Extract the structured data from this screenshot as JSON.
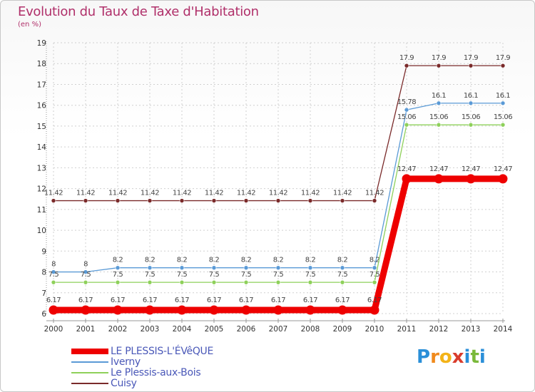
{
  "title": "Evolution du Taux de Taxe d'Habitation",
  "subtitle": "(en %)",
  "logo": {
    "letters": [
      "P",
      "r",
      "o",
      "x",
      "i",
      "t",
      "i"
    ],
    "colors": [
      "#2a8fd8",
      "#f08a1c",
      "#f3b318",
      "#d93c2c",
      "#2a8fd8",
      "#7ab93a",
      "#2a8fd8"
    ]
  },
  "chart_data": {
    "type": "line",
    "x": [
      "2000",
      "2001",
      "2002",
      "2003",
      "2004",
      "2005",
      "2006",
      "2007",
      "2008",
      "2009",
      "2010",
      "2011",
      "2012",
      "2013",
      "2014"
    ],
    "ylim": [
      6,
      19
    ],
    "yticks": [
      "6",
      "7",
      "8",
      "9",
      "10",
      "11",
      "12",
      "13",
      "14",
      "15",
      "16",
      "17",
      "18",
      "19"
    ],
    "grid": true,
    "legend_position": "bottom-left",
    "series": [
      {
        "name": "Cuisy",
        "color": "#7a2a2a",
        "width": 1.3,
        "marker": 3,
        "values": [
          11.42,
          11.42,
          11.42,
          11.42,
          11.42,
          11.42,
          11.42,
          11.42,
          11.42,
          11.42,
          11.42,
          17.9,
          17.9,
          17.9,
          17.9
        ],
        "labels": [
          "11.42",
          "11.42",
          "11.42",
          "11.42",
          "11.42",
          "11.42",
          "11.42",
          "11.42",
          "11.42",
          "11.42",
          "11.42",
          "17.9",
          "17.9",
          "17.9",
          "17.9"
        ]
      },
      {
        "name": "Iverny",
        "color": "#5a9ad6",
        "width": 1.3,
        "marker": 3,
        "values": [
          8,
          8,
          8.2,
          8.2,
          8.2,
          8.2,
          8.2,
          8.2,
          8.2,
          8.2,
          8.2,
          15.78,
          16.1,
          16.1,
          16.1
        ],
        "labels": [
          "8",
          "8",
          "8.2",
          "8.2",
          "8.2",
          "8.2",
          "8.2",
          "8.2",
          "8.2",
          "8.2",
          "8.2",
          "15.78",
          "16.1",
          "16.1",
          "16.1"
        ]
      },
      {
        "name": "Le Plessis-aux-Bois",
        "color": "#8ed05a",
        "width": 1.3,
        "marker": 3,
        "values": [
          7.5,
          7.5,
          7.5,
          7.5,
          7.5,
          7.5,
          7.5,
          7.5,
          7.5,
          7.5,
          7.5,
          15.06,
          15.06,
          15.06,
          15.06
        ],
        "labels": [
          "7.5",
          "7.5",
          "7.5",
          "7.5",
          "7.5",
          "7.5",
          "7.5",
          "7.5",
          "7.5",
          "7.5",
          "7.5",
          "15.06",
          "15.06",
          "15.06",
          "15.06"
        ]
      },
      {
        "name": "LE PLESSIS-L'ÉVêQUE",
        "color": "#ee0000",
        "width": 9,
        "marker": 6.5,
        "values": [
          6.17,
          6.17,
          6.17,
          6.17,
          6.17,
          6.17,
          6.17,
          6.17,
          6.17,
          6.17,
          6.17,
          12.47,
          12.47,
          12.47,
          12.47
        ],
        "labels": [
          "6.17",
          "6.17",
          "6.17",
          "6.17",
          "6.17",
          "6.17",
          "6.17",
          "6.17",
          "6.17",
          "6.17",
          "6.17",
          "12.47",
          "12.47",
          "12.47",
          "12.47"
        ]
      }
    ],
    "legend": [
      "LE PLESSIS-L'ÉVêQUE",
      "Iverny",
      "Le Plessis-aux-Bois",
      "Cuisy"
    ]
  }
}
